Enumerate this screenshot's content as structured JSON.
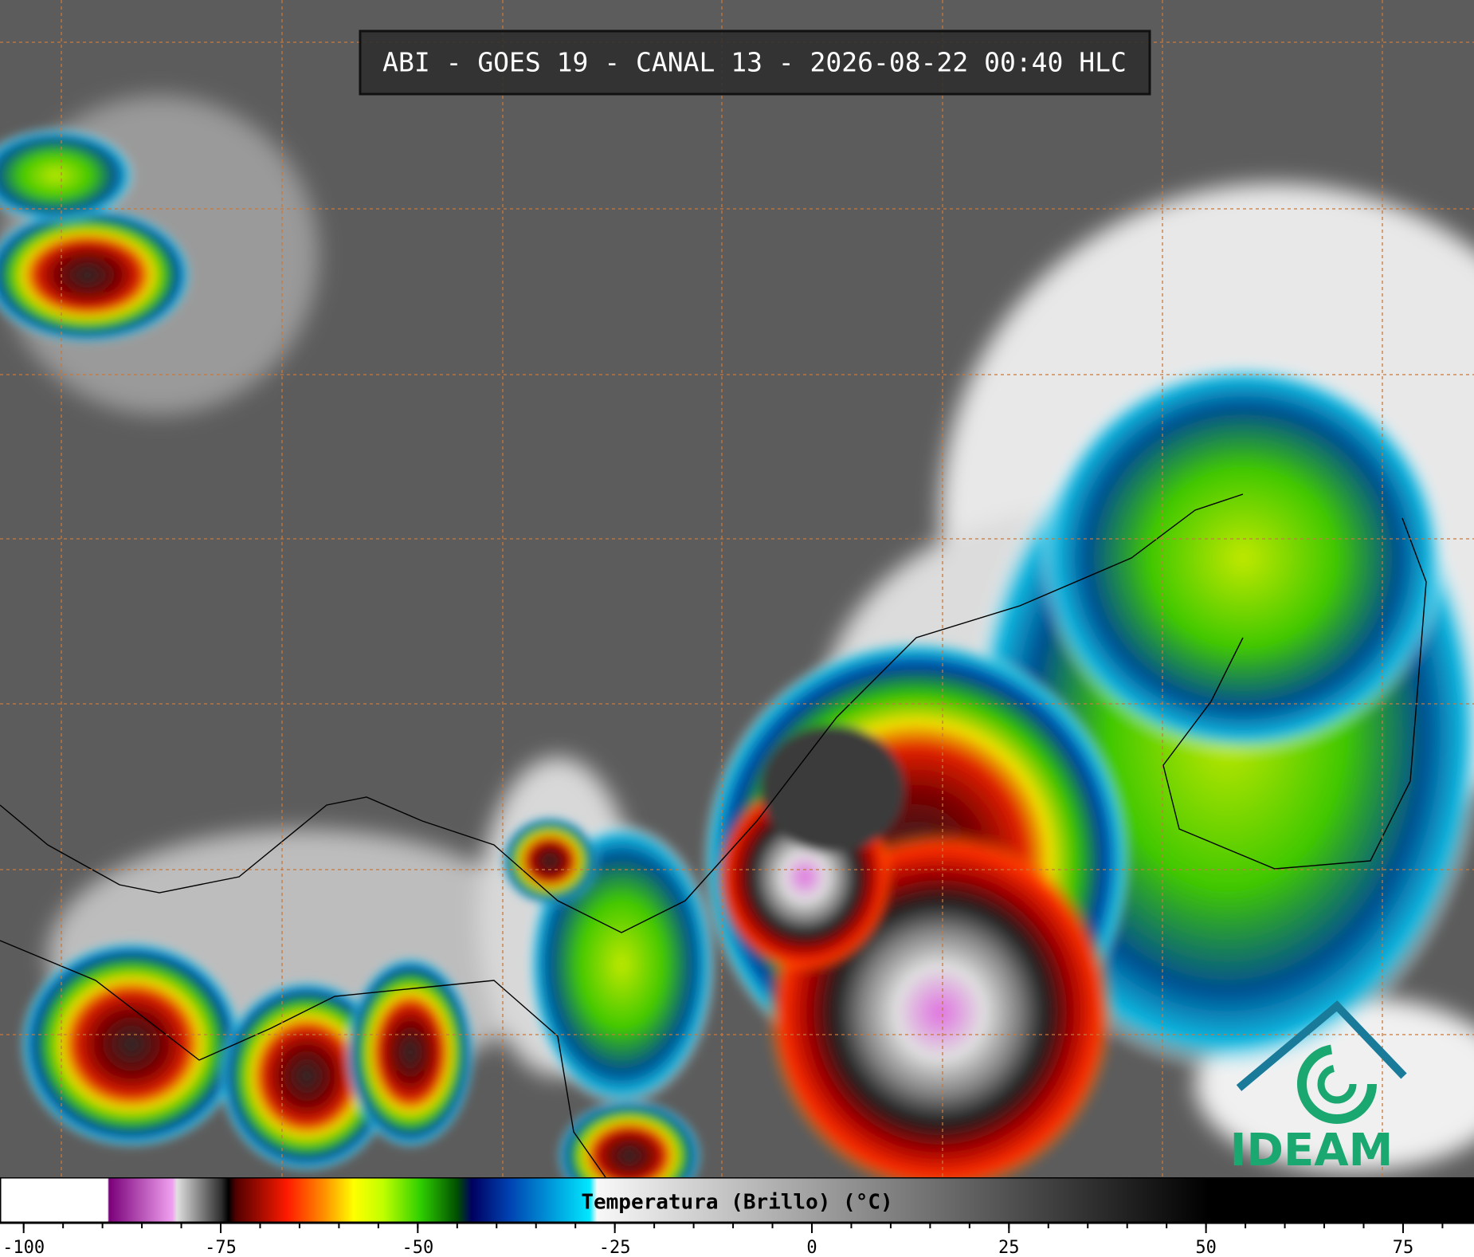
{
  "header": {
    "title": "ABI - GOES 19 - CANAL 13 - 2026-08-22 00:40 HLC"
  },
  "logo": {
    "text": "IDEAM"
  },
  "colorbar": {
    "label": "Temperatura (Brillo) (°C)",
    "xlim": [
      -103,
      84
    ],
    "xticks": [
      -100,
      -75,
      -50,
      -25,
      0,
      25,
      50,
      75
    ],
    "xminorticks": [
      -100,
      -95,
      -90,
      -85,
      -80,
      -75,
      -70,
      -65,
      -60,
      -55,
      -50,
      -45,
      -40,
      -35,
      -30,
      -25,
      -20,
      -15,
      -10,
      -5,
      0,
      5,
      10,
      15,
      20,
      25,
      30,
      35,
      40,
      45,
      50,
      55,
      60,
      65,
      70,
      75,
      80
    ]
  }
}
